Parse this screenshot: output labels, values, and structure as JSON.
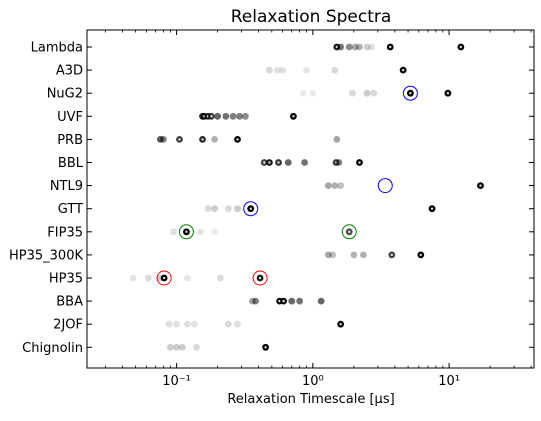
{
  "chart_data": {
    "type": "scatter",
    "title": "Relaxation Spectra",
    "xlabel": "Relaxation Timescale [μs]",
    "xscale": "log",
    "xlim": [
      0.022,
      42
    ],
    "x_ticks": [
      {
        "value": 0.1,
        "label": "10⁻¹"
      },
      {
        "value": 1,
        "label": "10⁰"
      },
      {
        "value": 10,
        "label": "10¹"
      }
    ],
    "categories": [
      "Lambda",
      "A3D",
      "NuG2",
      "UVF",
      "PRB",
      "BBL",
      "NTL9",
      "GTT",
      "FIP35",
      "HP35_300K",
      "HP35",
      "BBA",
      "2JOF",
      "Chignolin"
    ],
    "grid": false,
    "point_color": "#000000",
    "rows": [
      {
        "label": "Lambda",
        "points": [
          [
            1.5,
            0.9
          ],
          [
            1.6,
            0.55
          ],
          [
            1.85,
            0.45
          ],
          [
            2.05,
            0.35
          ],
          [
            2.2,
            0.3
          ],
          [
            2.5,
            0.2
          ],
          [
            2.7,
            0.12
          ],
          [
            3.7,
            1.0
          ],
          [
            12.2,
            1.0
          ]
        ],
        "circles": []
      },
      {
        "label": "A3D",
        "points": [
          [
            0.48,
            0.15
          ],
          [
            0.55,
            0.12
          ],
          [
            0.6,
            0.12
          ],
          [
            0.9,
            0.1
          ],
          [
            1.45,
            0.15
          ],
          [
            4.6,
            1.0
          ]
        ],
        "circles": []
      },
      {
        "label": "NuG2",
        "points": [
          [
            0.85,
            0.08
          ],
          [
            1.0,
            0.08
          ],
          [
            1.95,
            0.15
          ],
          [
            2.5,
            0.2
          ],
          [
            2.8,
            0.15
          ],
          [
            5.2,
            1.0
          ],
          [
            9.8,
            1.0
          ]
        ],
        "circles": [
          {
            "x": 5.2,
            "color": "#0000ff"
          }
        ]
      },
      {
        "label": "UVF",
        "points": [
          [
            0.155,
            0.85
          ],
          [
            0.16,
            0.8
          ],
          [
            0.17,
            0.8
          ],
          [
            0.18,
            0.75
          ],
          [
            0.2,
            0.6
          ],
          [
            0.23,
            0.55
          ],
          [
            0.26,
            0.5
          ],
          [
            0.29,
            0.5
          ],
          [
            0.32,
            0.45
          ],
          [
            0.72,
            1.0
          ]
        ],
        "circles": []
      },
      {
        "label": "PRB",
        "points": [
          [
            0.076,
            0.65
          ],
          [
            0.08,
            0.5
          ],
          [
            0.105,
            0.75
          ],
          [
            0.155,
            0.85
          ],
          [
            0.19,
            0.3
          ],
          [
            0.28,
            1.0
          ],
          [
            1.5,
            0.35
          ]
        ],
        "circles": []
      },
      {
        "label": "BBL",
        "points": [
          [
            0.44,
            0.75
          ],
          [
            0.48,
            0.9
          ],
          [
            0.56,
            0.8
          ],
          [
            0.66,
            0.6
          ],
          [
            0.87,
            0.55
          ],
          [
            1.48,
            0.75
          ],
          [
            1.55,
            0.5
          ],
          [
            2.2,
            1.0
          ]
        ],
        "circles": []
      },
      {
        "label": "NTL9",
        "points": [
          [
            1.3,
            0.35
          ],
          [
            1.45,
            0.3
          ],
          [
            1.6,
            0.25
          ],
          [
            17.0,
            1.0
          ]
        ],
        "circles": [
          {
            "x": 3.4,
            "color": "#0000ff"
          }
        ]
      },
      {
        "label": "GTT",
        "points": [
          [
            0.17,
            0.15
          ],
          [
            0.19,
            0.2
          ],
          [
            0.24,
            0.15
          ],
          [
            0.28,
            0.2
          ],
          [
            0.35,
            1.0
          ],
          [
            7.5,
            1.0
          ]
        ],
        "circles": [
          {
            "x": 0.35,
            "color": "#0000ff"
          }
        ]
      },
      {
        "label": "FIP35",
        "points": [
          [
            0.095,
            0.12
          ],
          [
            0.118,
            1.0
          ],
          [
            0.15,
            0.1
          ],
          [
            0.19,
            0.08
          ],
          [
            1.85,
            0.7
          ]
        ],
        "circles": [
          {
            "x": 0.118,
            "color": "#008000"
          },
          {
            "x": 1.85,
            "color": "#008000"
          }
        ]
      },
      {
        "label": "HP35_300K",
        "points": [
          [
            1.3,
            0.35
          ],
          [
            1.4,
            0.25
          ],
          [
            2.0,
            0.3
          ],
          [
            2.35,
            0.3
          ],
          [
            3.8,
            0.75
          ],
          [
            6.2,
            1.0
          ]
        ],
        "circles": []
      },
      {
        "label": "HP35",
        "points": [
          [
            0.048,
            0.1
          ],
          [
            0.062,
            0.15
          ],
          [
            0.075,
            0.2
          ],
          [
            0.081,
            1.0
          ],
          [
            0.12,
            0.1
          ],
          [
            0.21,
            0.15
          ],
          [
            0.41,
            0.9
          ]
        ],
        "circles": [
          {
            "x": 0.081,
            "color": "#ff0000"
          },
          {
            "x": 0.41,
            "color": "#ff0000"
          }
        ]
      },
      {
        "label": "BBA",
        "points": [
          [
            0.36,
            0.35
          ],
          [
            0.38,
            0.5
          ],
          [
            0.57,
            0.95
          ],
          [
            0.61,
            0.95
          ],
          [
            0.7,
            0.6
          ],
          [
            0.8,
            0.55
          ],
          [
            1.15,
            0.6
          ]
        ],
        "circles": []
      },
      {
        "label": "2JOF",
        "points": [
          [
            0.088,
            0.12
          ],
          [
            0.1,
            0.12
          ],
          [
            0.12,
            0.12
          ],
          [
            0.135,
            0.12
          ],
          [
            0.24,
            0.15
          ],
          [
            0.28,
            0.12
          ],
          [
            1.6,
            1.0
          ]
        ],
        "circles": []
      },
      {
        "label": "Chignolin",
        "points": [
          [
            0.09,
            0.2
          ],
          [
            0.1,
            0.2
          ],
          [
            0.11,
            0.2
          ],
          [
            0.14,
            0.15
          ],
          [
            0.45,
            1.0
          ]
        ],
        "circles": []
      }
    ]
  }
}
